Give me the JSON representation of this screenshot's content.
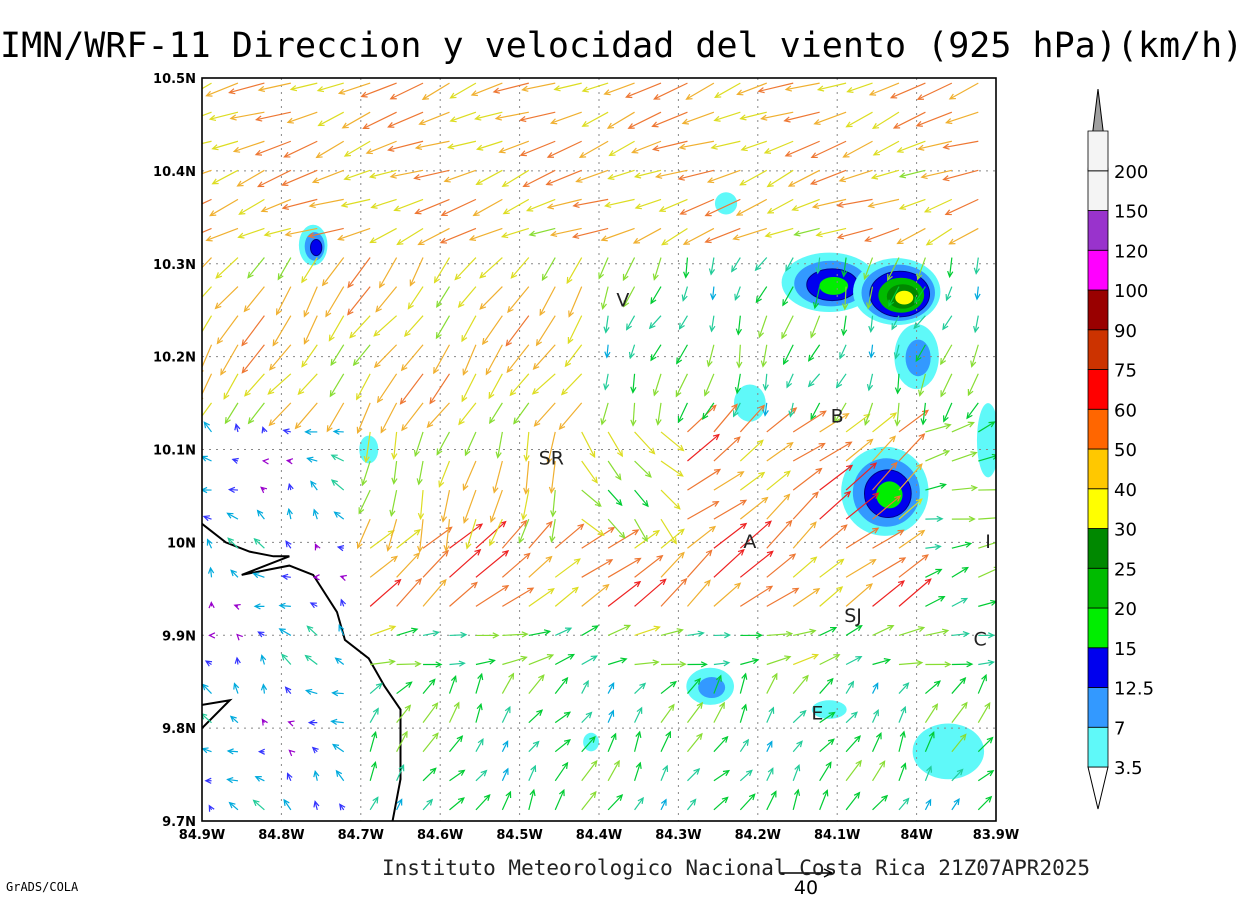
{
  "title": "IMN/WRF-11 Direccion y velocidad del viento (925 hPa)(km/h)",
  "footer": "Instituto Meteorologico Nacional Costa Rica 21Z07APR2025",
  "software_tag": "GrADS/COLA",
  "reference_vector": {
    "label": "40",
    "speed": 40
  },
  "map": {
    "lon_range": [
      -84.9,
      -83.9
    ],
    "lat_range": [
      9.7,
      10.5
    ],
    "lon_ticks": [
      {
        "value": -84.9,
        "label": "84.9W"
      },
      {
        "value": -84.8,
        "label": "84.8W"
      },
      {
        "value": -84.7,
        "label": "84.7W"
      },
      {
        "value": -84.6,
        "label": "84.6W"
      },
      {
        "value": -84.5,
        "label": "84.5W"
      },
      {
        "value": -84.4,
        "label": "84.4W"
      },
      {
        "value": -84.3,
        "label": "84.3W"
      },
      {
        "value": -84.2,
        "label": "84.2W"
      },
      {
        "value": -84.1,
        "label": "84.1W"
      },
      {
        "value": -84.0,
        "label": "84W"
      },
      {
        "value": -83.9,
        "label": "83.9W"
      }
    ],
    "lat_ticks": [
      {
        "value": 9.7,
        "label": "9.7N"
      },
      {
        "value": 9.8,
        "label": "9.8N"
      },
      {
        "value": 9.9,
        "label": "9.9N"
      },
      {
        "value": 10.0,
        "label": "10N"
      },
      {
        "value": 10.1,
        "label": "10.1N"
      },
      {
        "value": 10.2,
        "label": "10.2N"
      },
      {
        "value": 10.3,
        "label": "10.3N"
      },
      {
        "value": 10.4,
        "label": "10.4N"
      },
      {
        "value": 10.5,
        "label": "10.5N"
      }
    ],
    "grid": true,
    "cities": [
      {
        "code": "V",
        "lon": -84.37,
        "lat": 10.26
      },
      {
        "code": "SR",
        "lon": -84.46,
        "lat": 10.09
      },
      {
        "code": "B",
        "lon": -84.1,
        "lat": 10.135
      },
      {
        "code": "A",
        "lon": -84.21,
        "lat": 10.0
      },
      {
        "code": "I",
        "lon": -83.91,
        "lat": 10.0
      },
      {
        "code": "SJ",
        "lon": -84.08,
        "lat": 9.92
      },
      {
        "code": "C",
        "lon": -83.92,
        "lat": 9.895
      },
      {
        "code": "E",
        "lon": -84.125,
        "lat": 9.815
      }
    ],
    "shaded_areas": [
      {
        "lon": -84.76,
        "lat": 10.32,
        "rx": 0.018,
        "ry": 0.022,
        "levels": [
          3.5,
          7,
          12.5
        ]
      },
      {
        "lon": -84.69,
        "lat": 10.1,
        "rx": 0.012,
        "ry": 0.015,
        "levels": [
          3.5
        ]
      },
      {
        "lon": -84.24,
        "lat": 10.365,
        "rx": 0.014,
        "ry": 0.012,
        "levels": [
          3.5
        ]
      },
      {
        "lon": -84.11,
        "lat": 10.28,
        "rx": 0.06,
        "ry": 0.032,
        "levels": [
          3.5,
          7,
          12.5,
          15
        ]
      },
      {
        "lon": -84.025,
        "lat": 10.27,
        "rx": 0.055,
        "ry": 0.036,
        "levels": [
          3.5,
          7,
          12.5,
          20,
          25,
          30
        ]
      },
      {
        "lon": -84.0,
        "lat": 10.2,
        "rx": 0.028,
        "ry": 0.035,
        "levels": [
          3.5,
          7
        ]
      },
      {
        "lon": -84.21,
        "lat": 10.15,
        "rx": 0.02,
        "ry": 0.02,
        "levels": [
          3.5
        ]
      },
      {
        "lon": -84.04,
        "lat": 10.055,
        "rx": 0.055,
        "ry": 0.048,
        "levels": [
          3.5,
          7,
          12.5,
          15
        ]
      },
      {
        "lon": -83.91,
        "lat": 10.11,
        "rx": 0.014,
        "ry": 0.04,
        "levels": [
          3.5
        ]
      },
      {
        "lon": -84.26,
        "lat": 9.845,
        "rx": 0.03,
        "ry": 0.02,
        "levels": [
          3.5,
          7
        ]
      },
      {
        "lon": -84.11,
        "lat": 9.82,
        "rx": 0.022,
        "ry": 0.01,
        "levels": [
          3.5
        ]
      },
      {
        "lon": -84.41,
        "lat": 9.785,
        "rx": 0.01,
        "ry": 0.01,
        "levels": [
          3.5
        ]
      },
      {
        "lon": -83.96,
        "lat": 9.775,
        "rx": 0.045,
        "ry": 0.03,
        "levels": [
          3.5
        ]
      }
    ]
  },
  "colorbar": {
    "levels": [
      "3.5",
      "7",
      "12.5",
      "15",
      "20",
      "25",
      "30",
      "40",
      "50",
      "60",
      "75",
      "90",
      "100",
      "120",
      "150",
      "200"
    ],
    "level_values": [
      3.5,
      7,
      12.5,
      15,
      20,
      25,
      30,
      40,
      50,
      60,
      75,
      90,
      100,
      120,
      150,
      200
    ],
    "colors": [
      "#5ff9f9",
      "#3399ff",
      "#0000ee",
      "#00ee00",
      "#00bb00",
      "#008800",
      "#ffff00",
      "#ffc800",
      "#ff6600",
      "#ff0000",
      "#cc3300",
      "#990000",
      "#ff00ff",
      "#9933cc",
      "#f4f4f4",
      "#a0a0a0"
    ],
    "min_color": "#ffffff",
    "max_color": "#a0a0a0"
  },
  "vector_palette": [
    "#9900cc",
    "#3333ff",
    "#00aadd",
    "#22cc99",
    "#00cc33",
    "#88dd33",
    "#dddd22",
    "#f0b030",
    "#ee7733",
    "#ee2222"
  ]
}
